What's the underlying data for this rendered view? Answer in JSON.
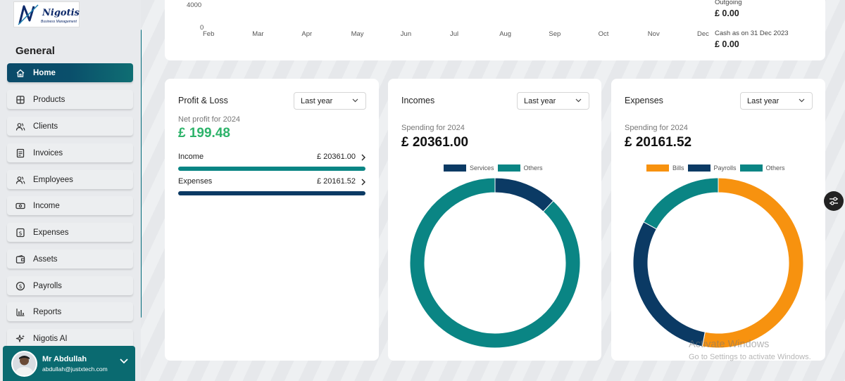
{
  "app": {
    "logo_text": "Nigotis",
    "logo_subtitle": "Business Management"
  },
  "sidebar": {
    "section_title": "General",
    "items": [
      {
        "label": "Home",
        "icon": "home-icon"
      },
      {
        "label": "Products",
        "icon": "grid-icon"
      },
      {
        "label": "Clients",
        "icon": "users-icon"
      },
      {
        "label": "Invoices",
        "icon": "document-icon"
      },
      {
        "label": "Employees",
        "icon": "users-icon"
      },
      {
        "label": "Income",
        "icon": "cash-icon"
      },
      {
        "label": "Expenses",
        "icon": "dollar-box-icon"
      },
      {
        "label": "Assets",
        "icon": "wallet-icon"
      },
      {
        "label": "Payrolls",
        "icon": "dollar-circle-icon"
      },
      {
        "label": "Reports",
        "icon": "bar-chart-icon"
      },
      {
        "label": "Nigotis AI",
        "icon": "sparkle-icon"
      }
    ],
    "active_index": 0
  },
  "user": {
    "name": "Mr Abdullah",
    "email": "abdullah@justxtech.com"
  },
  "top_chart": {
    "y_ticks": [
      "4000",
      "0"
    ],
    "months": [
      "Feb",
      "Mar",
      "Apr",
      "May",
      "Jun",
      "Jul",
      "Aug",
      "Sep",
      "Oct",
      "Nov",
      "Dec"
    ],
    "outgoing_label": "Outgoing",
    "outgoing_value": "£ 0.00",
    "cash_label": "Cash as on 31 Dec 2023",
    "cash_value": "£ 0.00"
  },
  "profit_loss": {
    "title": "Profit & Loss",
    "period": "Last year",
    "sub_label": "Net profit for 2024",
    "net_profit": "£ 199.48",
    "income_label": "Income",
    "income_value": "£ 20361.00",
    "expenses_label": "Expenses",
    "expenses_value": "£ 20161.52",
    "income_bar_fraction": 1.0,
    "expenses_bar_fraction": 1.0,
    "income_color": "#0a8584",
    "expenses_color": "#0b3a64",
    "profit_color": "#2db36a"
  },
  "incomes": {
    "title": "Incomes",
    "period": "Last year",
    "sub_label": "Spending for 2024",
    "total": "£ 20361.00",
    "legend": [
      {
        "name": "Services",
        "color": "#0b3a64"
      },
      {
        "name": "Others",
        "color": "#0a8584"
      }
    ],
    "slices": [
      {
        "name": "Services",
        "value": 12,
        "color": "#0b3a64"
      },
      {
        "name": "Others",
        "value": 88,
        "color": "#0a8584"
      }
    ]
  },
  "expenses": {
    "title": "Expenses",
    "period": "Last year",
    "sub_label": "Spending for 2024",
    "total": "£ 20161.52",
    "legend": [
      {
        "name": "Bills",
        "color": "#f7920f"
      },
      {
        "name": "Payrolls",
        "color": "#0b3a64"
      },
      {
        "name": "Others",
        "color": "#0a8584"
      }
    ],
    "slices": [
      {
        "name": "Bills",
        "value": 53,
        "color": "#f7920f"
      },
      {
        "name": "Payrolls",
        "value": 30,
        "color": "#0b3a64"
      },
      {
        "name": "Others",
        "value": 17,
        "color": "#0a8584"
      }
    ]
  },
  "watermark": {
    "line1": "Activate Windows",
    "line2": "Go to Settings to activate Windows."
  }
}
